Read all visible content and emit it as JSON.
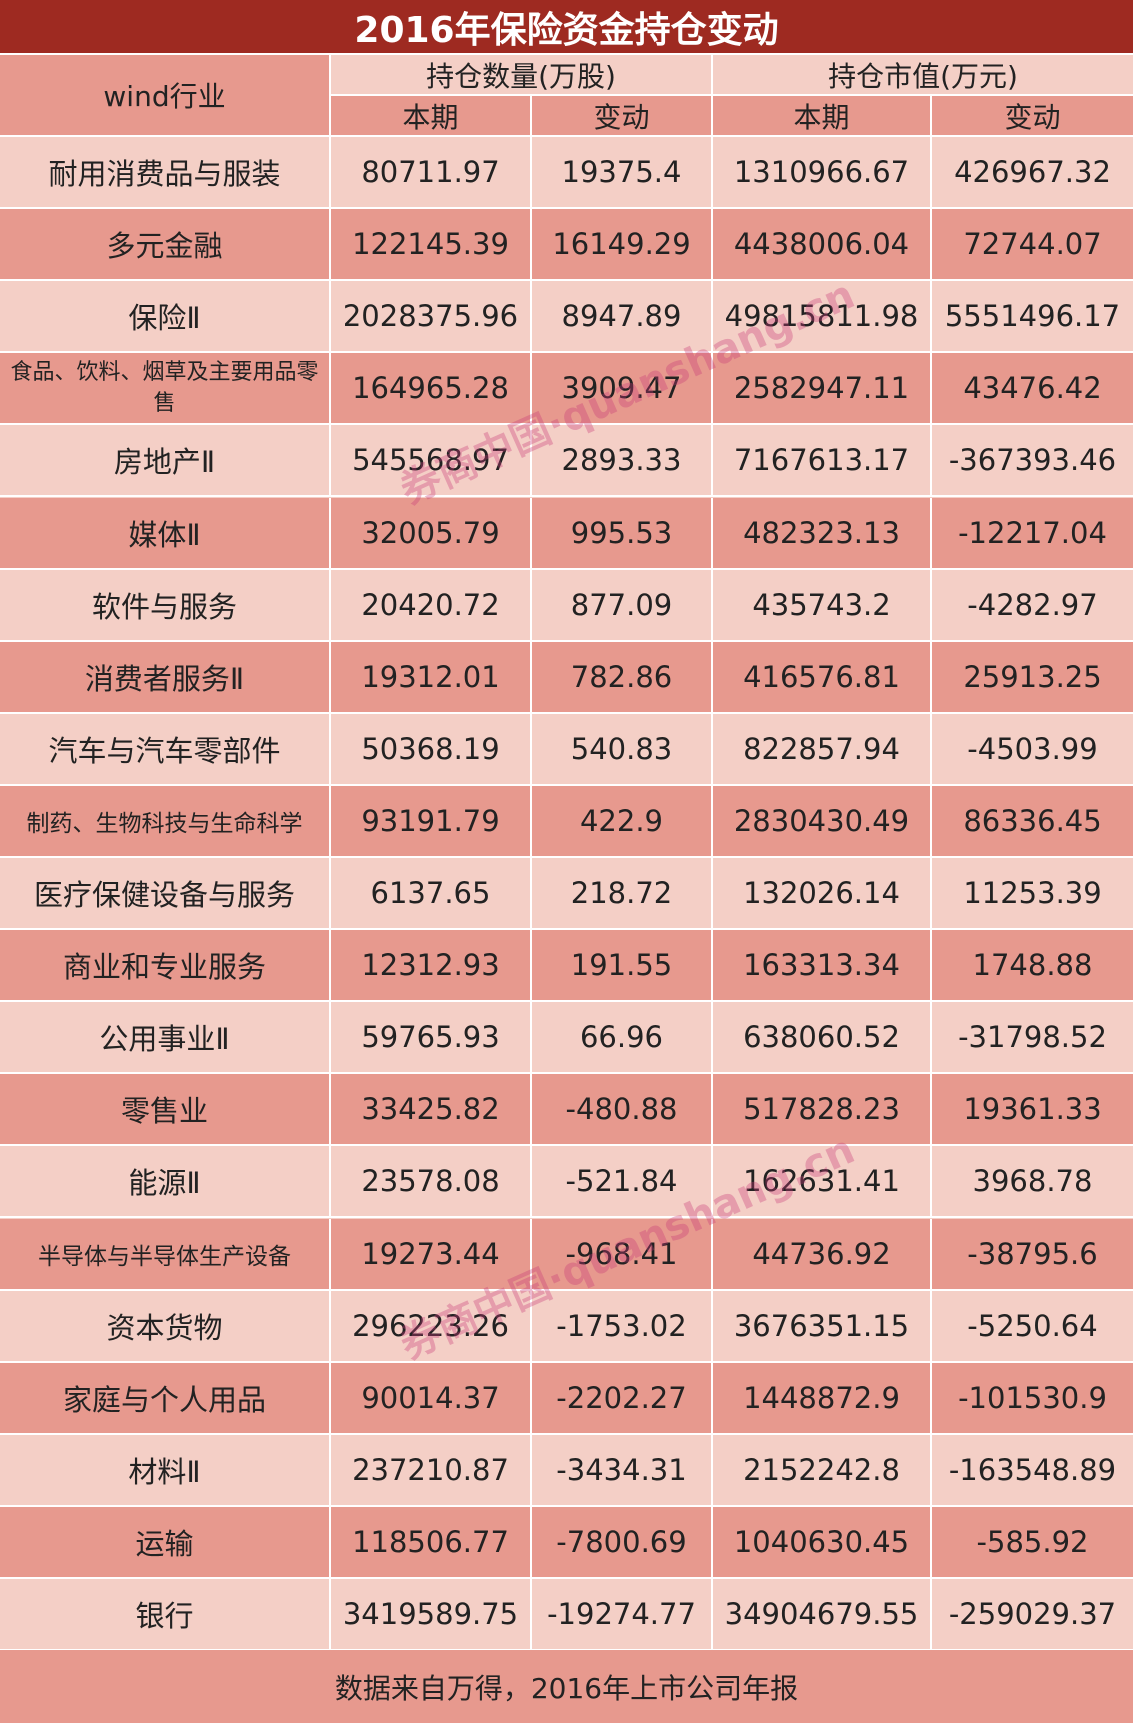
{
  "title": "2016年保险资金持仓变动",
  "header": {
    "industry": "wind行业",
    "holdings_group": "持仓数量(万股)",
    "market_value_group": "持仓市值(万元)",
    "current": "本期",
    "change": "变动"
  },
  "rows": [
    {
      "name": "耐用消费品与服装",
      "qty": "80711.97",
      "qty_change": "19375.4",
      "value": "1310966.67",
      "value_change": "426967.32"
    },
    {
      "name": "多元金融",
      "qty": "122145.39",
      "qty_change": "16149.29",
      "value": "4438006.04",
      "value_change": "72744.07"
    },
    {
      "name": "保险Ⅱ",
      "qty": "2028375.96",
      "qty_change": "8947.89",
      "value": "49815811.98",
      "value_change": "5551496.17"
    },
    {
      "name": "食品、饮料、烟草及主要用品零售",
      "qty": "164965.28",
      "qty_change": "3909.47",
      "value": "2582947.11",
      "value_change": "43476.42"
    },
    {
      "name": "房地产Ⅱ",
      "qty": "545568.97",
      "qty_change": "2893.33",
      "value": "7167613.17",
      "value_change": "-367393.46"
    },
    {
      "name": "媒体Ⅱ",
      "qty": "32005.79",
      "qty_change": "995.53",
      "value": "482323.13",
      "value_change": "-12217.04"
    },
    {
      "name": "软件与服务",
      "qty": "20420.72",
      "qty_change": "877.09",
      "value": "435743.2",
      "value_change": "-4282.97"
    },
    {
      "name": "消费者服务Ⅱ",
      "qty": "19312.01",
      "qty_change": "782.86",
      "value": "416576.81",
      "value_change": "25913.25"
    },
    {
      "name": "汽车与汽车零部件",
      "qty": "50368.19",
      "qty_change": "540.83",
      "value": "822857.94",
      "value_change": "-4503.99"
    },
    {
      "name": "制药、生物科技与生命科学",
      "qty": "93191.79",
      "qty_change": "422.9",
      "value": "2830430.49",
      "value_change": "86336.45"
    },
    {
      "name": "医疗保健设备与服务",
      "qty": "6137.65",
      "qty_change": "218.72",
      "value": "132026.14",
      "value_change": "11253.39"
    },
    {
      "name": "商业和专业服务",
      "qty": "12312.93",
      "qty_change": "191.55",
      "value": "163313.34",
      "value_change": "1748.88"
    },
    {
      "name": "公用事业Ⅱ",
      "qty": "59765.93",
      "qty_change": "66.96",
      "value": "638060.52",
      "value_change": "-31798.52"
    },
    {
      "name": "零售业",
      "qty": "33425.82",
      "qty_change": "-480.88",
      "value": "517828.23",
      "value_change": "19361.33"
    },
    {
      "name": "能源Ⅱ",
      "qty": "23578.08",
      "qty_change": "-521.84",
      "value": "162631.41",
      "value_change": "3968.78"
    },
    {
      "name": "半导体与半导体生产设备",
      "qty": "19273.44",
      "qty_change": "-968.41",
      "value": "44736.92",
      "value_change": "-38795.6"
    },
    {
      "name": "资本货物",
      "qty": "296223.26",
      "qty_change": "-1753.02",
      "value": "3676351.15",
      "value_change": "-5250.64"
    },
    {
      "name": "家庭与个人用品",
      "qty": "90014.37",
      "qty_change": "-2202.27",
      "value": "1448872.9",
      "value_change": "-101530.9"
    },
    {
      "name": "材料Ⅱ",
      "qty": "237210.87",
      "qty_change": "-3434.31",
      "value": "2152242.8",
      "value_change": "-163548.89"
    },
    {
      "name": "运输",
      "qty": "118506.77",
      "qty_change": "-7800.69",
      "value": "1040630.45",
      "value_change": "-585.92"
    },
    {
      "name": "银行",
      "qty": "3419589.75",
      "qty_change": "-19274.77",
      "value": "34904679.55",
      "value_change": "-259029.37"
    }
  ],
  "footer": "数据来自万得，2016年上市公司年报",
  "watermark": "券商中国·quanshang.cn",
  "colors": {
    "title_bg": "#9e2a21",
    "row_light": "#f4cfc6",
    "row_dark": "#e7998e"
  }
}
